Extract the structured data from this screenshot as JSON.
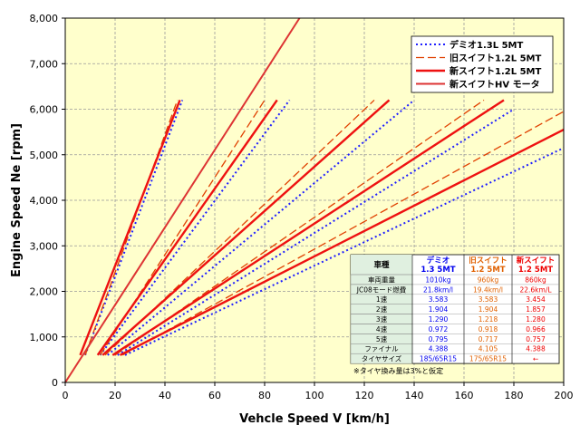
{
  "chart_data": {
    "type": "line",
    "xlabel": "Vehcle Speed V [km/h]",
    "ylabel": "Engine Speed Ne [rpm]",
    "xlim": [
      0,
      200
    ],
    "ylim": [
      0,
      8000
    ],
    "x_ticks": [
      0,
      20,
      40,
      60,
      80,
      100,
      120,
      140,
      160,
      180,
      200
    ],
    "y_ticks": [
      0,
      1000,
      2000,
      3000,
      4000,
      5000,
      6000,
      7000,
      8000
    ],
    "y_tick_labels": [
      "0",
      "1,000",
      "2,000",
      "3,000",
      "4,000",
      "5,000",
      "6,000",
      "7,000",
      "8,000"
    ],
    "grid": true,
    "background": "#ffffcc",
    "legend_position": "top-right",
    "series": [
      {
        "name": "デミオ1.3L 5MT",
        "color": "#1f1fff",
        "style": "dotted",
        "lines": [
          [
            [
              8,
              600
            ],
            [
              47,
              6200
            ]
          ],
          [
            [
              14,
              600
            ],
            [
              90,
              6200
            ]
          ],
          [
            [
              17,
              600
            ],
            [
              140,
              6200
            ]
          ],
          [
            [
              21,
              600
            ],
            [
              180,
              6000
            ]
          ],
          [
            [
              24,
              600
            ],
            [
              200,
              5150
            ]
          ]
        ]
      },
      {
        "name": "旧スイフト1.2L 5MT",
        "color": "#e04000",
        "style": "dashed",
        "lines": [
          [
            [
              8,
              600
            ],
            [
              45,
              6200
            ]
          ],
          [
            [
              14,
              600
            ],
            [
              80,
              6200
            ]
          ],
          [
            [
              16,
              600
            ],
            [
              124,
              6200
            ]
          ],
          [
            [
              20,
              600
            ],
            [
              168,
              6200
            ]
          ],
          [
            [
              23,
              600
            ],
            [
              200,
              5950
            ]
          ]
        ]
      },
      {
        "name": "新スイフト1.2L 5MT",
        "color": "#ee1111",
        "style": "solid",
        "lines": [
          [
            [
              6,
              600
            ],
            [
              46,
              6200
            ]
          ],
          [
            [
              13,
              600
            ],
            [
              85,
              6200
            ]
          ],
          [
            [
              15,
              600
            ],
            [
              130,
              6200
            ]
          ],
          [
            [
              19,
              600
            ],
            [
              176,
              6200
            ]
          ],
          [
            [
              22,
              600
            ],
            [
              200,
              5550
            ]
          ]
        ]
      },
      {
        "name": "新スイフトHV モータ",
        "color": "#dd3333",
        "style": "double",
        "lines": [
          [
            [
              0,
              0
            ],
            [
              94,
              8000
            ]
          ]
        ]
      }
    ],
    "spec_table": {
      "header": [
        "車種",
        "デミオ\n1.3 5MT",
        "旧スイフト\n1.2 5MT",
        "新スイフト\n1.2 5MT"
      ],
      "header_colors": [
        "#000000",
        "#0000ee",
        "#e06000",
        "#ee0000"
      ],
      "rows": [
        [
          "車両重量",
          "1010kg",
          "960kg",
          "860kg"
        ],
        [
          "JC08モード燃費",
          "21.8km/l",
          "19.4km/l",
          "22.6km/L"
        ],
        [
          "1速",
          "3.583",
          "3.583",
          "3.454"
        ],
        [
          "2速",
          "1.904",
          "1.904",
          "1.857"
        ],
        [
          "3速",
          "1.290",
          "1.218",
          "1.280"
        ],
        [
          "4速",
          "0.972",
          "0.918",
          "0.966"
        ],
        [
          "5速",
          "0.795",
          "0.717",
          "0.757"
        ],
        [
          "ファイナル",
          "4.388",
          "4.105",
          "4.388"
        ],
        [
          "タイヤサイズ",
          "185/65R15",
          "175/65R15",
          "←"
        ]
      ],
      "footnote": "※タイヤ換み量は3%と仮定"
    }
  }
}
